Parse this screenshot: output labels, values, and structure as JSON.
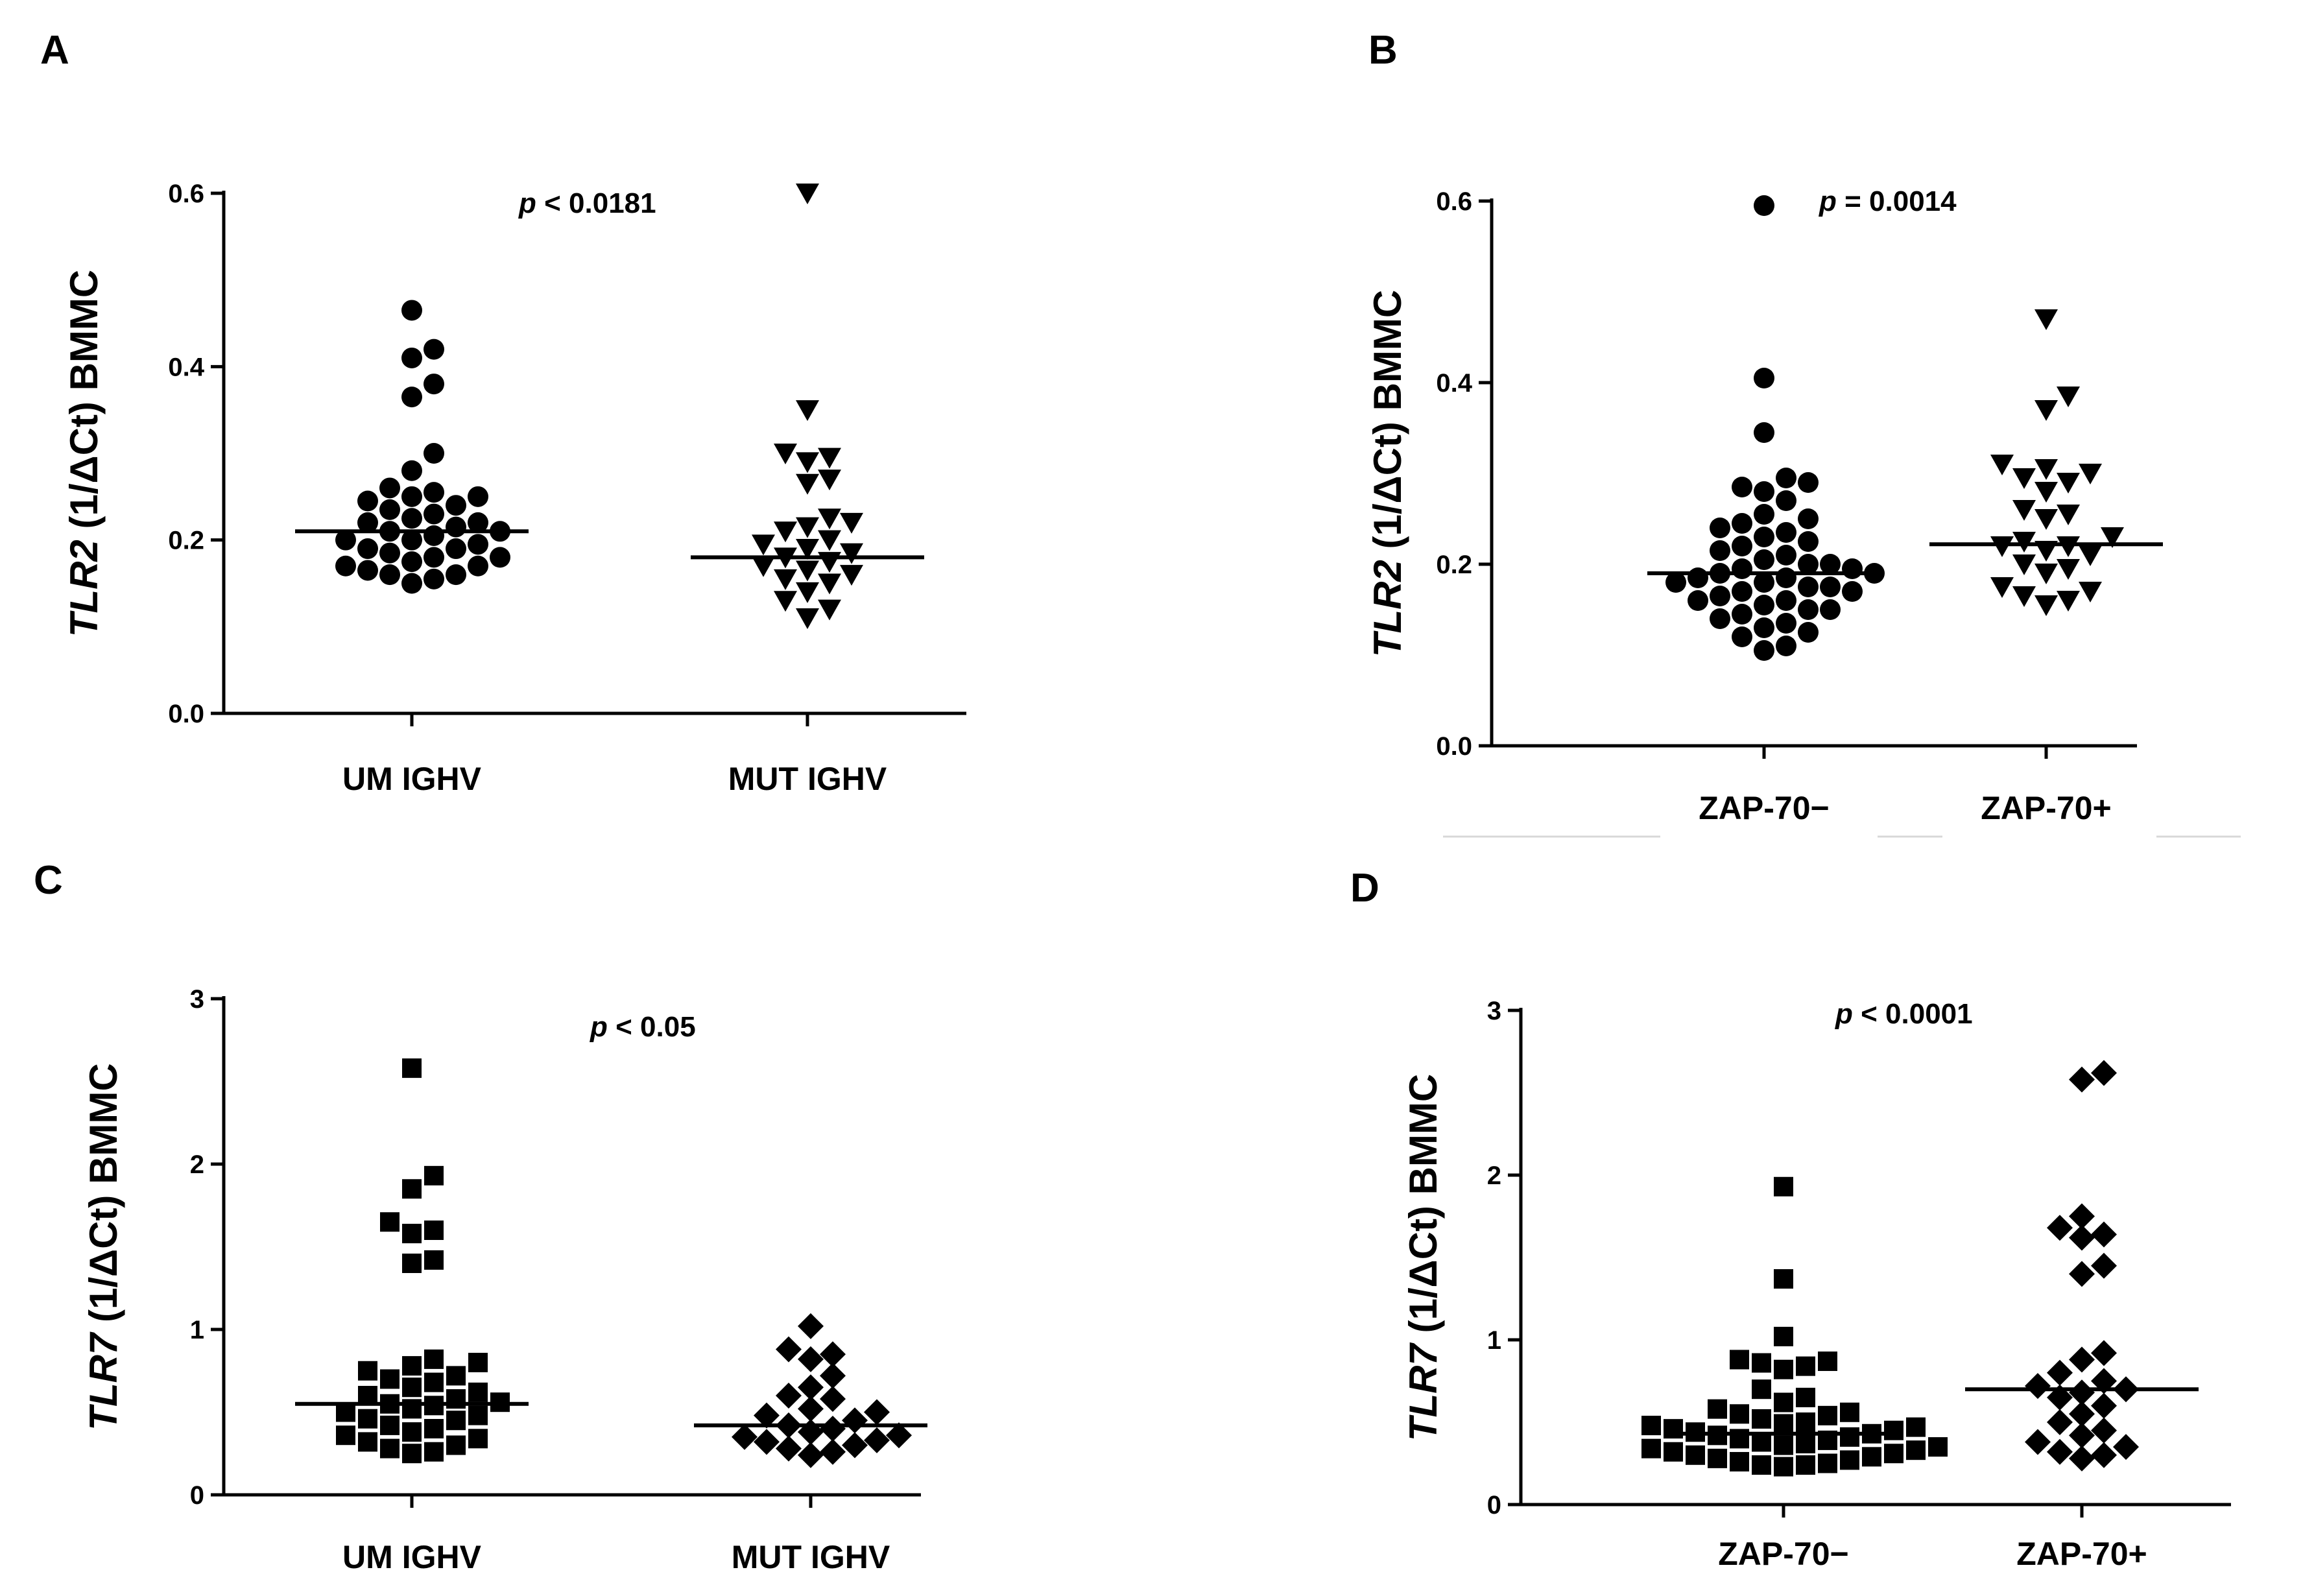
{
  "chart_data": [
    {
      "panel": "A",
      "type": "scatter",
      "ylabel_gene": "TLR2",
      "ylabel_rest": " (1/ΔCt) BMMC",
      "yticks": [
        "0.0",
        "0.2",
        "0.4",
        "0.6"
      ],
      "ylim": [
        0,
        0.6
      ],
      "p_prefix": "p",
      "p_text": " < 0.0181",
      "groups": [
        {
          "name": "UM IGHV",
          "marker": "circle",
          "median": 0.21,
          "values": [
            0.465,
            0.42,
            0.41,
            0.38,
            0.365,
            0.3,
            0.28,
            0.26,
            0.255,
            0.25,
            0.25,
            0.245,
            0.24,
            0.235,
            0.23,
            0.225,
            0.22,
            0.22,
            0.215,
            0.21,
            0.21,
            0.205,
            0.2,
            0.2,
            0.195,
            0.19,
            0.19,
            0.185,
            0.18,
            0.18,
            0.175,
            0.17,
            0.17,
            0.165,
            0.16,
            0.16,
            0.155,
            0.15
          ]
        },
        {
          "name": "MUT IGHV",
          "marker": "triangle-down",
          "median": 0.18,
          "values": [
            0.6,
            0.35,
            0.3,
            0.295,
            0.29,
            0.27,
            0.265,
            0.225,
            0.22,
            0.215,
            0.21,
            0.2,
            0.195,
            0.19,
            0.185,
            0.18,
            0.175,
            0.17,
            0.165,
            0.16,
            0.155,
            0.15,
            0.14,
            0.13,
            0.12,
            0.11
          ]
        }
      ]
    },
    {
      "panel": "B",
      "type": "scatter",
      "ylabel_gene": "TLR2",
      "ylabel_rest": " (1/ΔCt) BMMC",
      "yticks": [
        "0.0",
        "0.2",
        "0.4",
        "0.6"
      ],
      "ylim": [
        0,
        0.6
      ],
      "p_prefix": "p",
      "p_text": " = 0.0014",
      "groups": [
        {
          "name": "ZAP-70−",
          "marker": "circle",
          "median": 0.19,
          "values": [
            0.595,
            0.405,
            0.345,
            0.295,
            0.29,
            0.285,
            0.28,
            0.27,
            0.255,
            0.25,
            0.245,
            0.24,
            0.235,
            0.23,
            0.225,
            0.22,
            0.215,
            0.21,
            0.205,
            0.2,
            0.2,
            0.195,
            0.195,
            0.19,
            0.19,
            0.185,
            0.185,
            0.18,
            0.18,
            0.175,
            0.175,
            0.17,
            0.17,
            0.165,
            0.16,
            0.16,
            0.155,
            0.15,
            0.15,
            0.145,
            0.14,
            0.135,
            0.13,
            0.125,
            0.12,
            0.11,
            0.105
          ]
        },
        {
          "name": "ZAP-70+",
          "marker": "triangle-down",
          "median": 0.222,
          "values": [
            0.47,
            0.385,
            0.37,
            0.31,
            0.305,
            0.3,
            0.295,
            0.29,
            0.28,
            0.26,
            0.255,
            0.25,
            0.23,
            0.225,
            0.22,
            0.22,
            0.215,
            0.21,
            0.2,
            0.195,
            0.19,
            0.175,
            0.17,
            0.165,
            0.16,
            0.155
          ]
        }
      ]
    },
    {
      "panel": "C",
      "type": "scatter",
      "ylabel_gene": "TLR7",
      "ylabel_rest": " (1/ΔCt) BMMC",
      "yticks": [
        "0",
        "1",
        "2",
        "3"
      ],
      "ylim": [
        0,
        3
      ],
      "p_prefix": "p",
      "p_text": " < 0.05",
      "groups": [
        {
          "name": "UM IGHV",
          "marker": "square",
          "median": 0.55,
          "values": [
            2.58,
            1.93,
            1.85,
            1.65,
            1.6,
            1.58,
            1.42,
            1.4,
            0.82,
            0.8,
            0.78,
            0.75,
            0.72,
            0.7,
            0.68,
            0.65,
            0.62,
            0.6,
            0.58,
            0.56,
            0.55,
            0.54,
            0.52,
            0.5,
            0.48,
            0.46,
            0.45,
            0.42,
            0.4,
            0.38,
            0.36,
            0.34,
            0.32,
            0.3,
            0.28,
            0.26,
            0.25
          ]
        },
        {
          "name": "MUT IGHV",
          "marker": "diamond",
          "median": 0.42,
          "values": [
            1.02,
            0.88,
            0.85,
            0.82,
            0.72,
            0.65,
            0.6,
            0.58,
            0.52,
            0.5,
            0.48,
            0.45,
            0.42,
            0.4,
            0.38,
            0.36,
            0.35,
            0.33,
            0.32,
            0.3,
            0.28,
            0.26,
            0.24
          ]
        }
      ]
    },
    {
      "panel": "D",
      "type": "scatter",
      "ylabel_gene": "TLR7",
      "ylabel_rest": " (1/ΔCt) BMMC",
      "yticks": [
        "0",
        "1",
        "2",
        "3"
      ],
      "ylim": [
        0,
        3
      ],
      "p_prefix": "p",
      "p_text": " < 0.0001",
      "groups": [
        {
          "name": "ZAP-70−",
          "marker": "square",
          "median": 0.43,
          "values": [
            1.93,
            1.37,
            1.02,
            0.88,
            0.87,
            0.86,
            0.84,
            0.82,
            0.7,
            0.65,
            0.62,
            0.58,
            0.56,
            0.55,
            0.54,
            0.52,
            0.5,
            0.49,
            0.48,
            0.47,
            0.46,
            0.45,
            0.44,
            0.43,
            0.42,
            0.41,
            0.4,
            0.39,
            0.38,
            0.37,
            0.36,
            0.35,
            0.34,
            0.33,
            0.32,
            0.31,
            0.3,
            0.29,
            0.28,
            0.27,
            0.26,
            0.25,
            0.24,
            0.24,
            0.23
          ]
        },
        {
          "name": "ZAP-70+",
          "marker": "diamond",
          "median": 0.7,
          "values": [
            2.62,
            2.58,
            1.75,
            1.68,
            1.64,
            1.62,
            1.45,
            1.4,
            0.92,
            0.88,
            0.8,
            0.75,
            0.72,
            0.7,
            0.68,
            0.65,
            0.6,
            0.55,
            0.5,
            0.45,
            0.42,
            0.38,
            0.35,
            0.32,
            0.3,
            0.28
          ]
        }
      ]
    }
  ]
}
